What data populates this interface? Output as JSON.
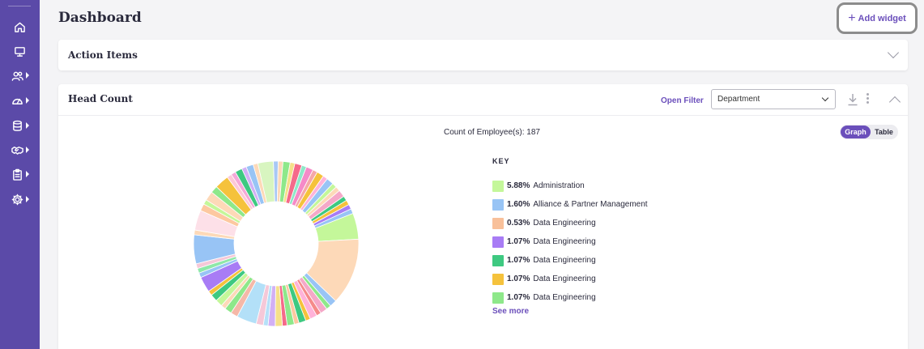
{
  "header": {
    "title": "Dashboard",
    "add_widget_label": "Add widget"
  },
  "sidebar": {
    "items": [
      {
        "name": "home-icon",
        "has_caret": false
      },
      {
        "name": "monitor-icon",
        "has_caret": false
      },
      {
        "name": "users-icon",
        "has_caret": true
      },
      {
        "name": "gauge-icon",
        "has_caret": true
      },
      {
        "name": "database-icon",
        "has_caret": true
      },
      {
        "name": "handshake-icon",
        "has_caret": true
      },
      {
        "name": "clipboard-icon",
        "has_caret": true
      },
      {
        "name": "gear-icon",
        "has_caret": true
      }
    ]
  },
  "action_items": {
    "title": "Action Items"
  },
  "head_count": {
    "title": "Head Count",
    "open_filter": "Open Filter",
    "filter_select": "Department",
    "count_label": "Count of Employee(s): 187",
    "toggle": {
      "graph": "Graph",
      "table": "Table",
      "selected": "Graph"
    },
    "key_title": "KEY",
    "see_more": "See more",
    "legend": [
      {
        "pct": "5.88%",
        "label": "Administration",
        "color": "#c4f79a"
      },
      {
        "pct": "1.60%",
        "label": "Alliance & Partner Management",
        "color": "#98c4f5"
      },
      {
        "pct": "0.53%",
        "label": "Data Engineering",
        "color": "#f8c09a"
      },
      {
        "pct": "1.07%",
        "label": "Data Engineering",
        "color": "#a87cf5"
      },
      {
        "pct": "1.07%",
        "label": "Data Engineering",
        "color": "#3ec981"
      },
      {
        "pct": "1.07%",
        "label": "Data Engineering",
        "color": "#f5c23c"
      },
      {
        "pct": "1.07%",
        "label": "Data Engineering",
        "color": "#8ee88a"
      }
    ]
  },
  "chart_data": {
    "type": "pie",
    "title": "Count of Employee(s): 187",
    "slices": [
      {
        "value": 5.88,
        "color": "#c4f79a"
      },
      {
        "value": 15.0,
        "color": "#fdd9b8"
      },
      {
        "value": 1.6,
        "color": "#98c4f5"
      },
      {
        "value": 1.07,
        "color": "#8ee88a"
      },
      {
        "value": 1.6,
        "color": "#f5a8c8"
      },
      {
        "value": 1.07,
        "color": "#f58a8a"
      },
      {
        "value": 1.6,
        "color": "#ffb3d9"
      },
      {
        "value": 1.07,
        "color": "#f5c23c"
      },
      {
        "value": 1.6,
        "color": "#3ec981"
      },
      {
        "value": 1.07,
        "color": "#fdc8a0"
      },
      {
        "value": 1.6,
        "color": "#8ee88a"
      },
      {
        "value": 1.07,
        "color": "#f56a8a"
      },
      {
        "value": 1.6,
        "color": "#f5e08a"
      },
      {
        "value": 1.6,
        "color": "#d2b0f5"
      },
      {
        "value": 1.07,
        "color": "#b6e0f8"
      },
      {
        "value": 1.6,
        "color": "#f5c8d8"
      },
      {
        "value": 4.5,
        "color": "#b3e0f8"
      },
      {
        "value": 1.6,
        "color": "#f5b8a8"
      },
      {
        "value": 1.6,
        "color": "#8ee88a"
      },
      {
        "value": 1.07,
        "color": "#fdd9b8"
      },
      {
        "value": 1.6,
        "color": "#c4f79a"
      },
      {
        "value": 1.6,
        "color": "#3ec981"
      },
      {
        "value": 1.07,
        "color": "#f5c23c"
      },
      {
        "value": 3.5,
        "color": "#a87cf5"
      },
      {
        "value": 1.07,
        "color": "#98c4f5"
      },
      {
        "value": 1.07,
        "color": "#8ee8a8"
      },
      {
        "value": 1.07,
        "color": "#f5c8d8"
      },
      {
        "value": 6.5,
        "color": "#98c4f5"
      },
      {
        "value": 1.07,
        "color": "#fdd9b8"
      },
      {
        "value": 4.5,
        "color": "#fde0e8"
      },
      {
        "value": 1.6,
        "color": "#fdc8a0"
      },
      {
        "value": 1.07,
        "color": "#c4f79a"
      },
      {
        "value": 2.1,
        "color": "#fdd9b8"
      },
      {
        "value": 1.6,
        "color": "#8ee88a"
      },
      {
        "value": 3.2,
        "color": "#f5c23c"
      },
      {
        "value": 1.07,
        "color": "#fdc8d8"
      },
      {
        "value": 1.07,
        "color": "#f5a8d8"
      },
      {
        "value": 1.6,
        "color": "#3ec981"
      },
      {
        "value": 1.07,
        "color": "#d2b0f5"
      },
      {
        "value": 1.6,
        "color": "#98c4f5"
      },
      {
        "value": 1.07,
        "color": "#fdd9b8"
      },
      {
        "value": 3.5,
        "color": "#d8f5c0"
      },
      {
        "value": 1.07,
        "color": "#a8c8f5"
      },
      {
        "value": 1.07,
        "color": "#fdd9b8"
      },
      {
        "value": 1.6,
        "color": "#8ee88a"
      },
      {
        "value": 1.07,
        "color": "#f5e08a"
      },
      {
        "value": 1.6,
        "color": "#f56a8a"
      },
      {
        "value": 1.07,
        "color": "#8ee8c8"
      },
      {
        "value": 1.6,
        "color": "#f58ac8"
      },
      {
        "value": 1.07,
        "color": "#f5a8a8"
      },
      {
        "value": 1.6,
        "color": "#f5c23c"
      },
      {
        "value": 1.07,
        "color": "#ffb3d9"
      },
      {
        "value": 1.6,
        "color": "#98c4f5"
      },
      {
        "value": 1.07,
        "color": "#c4f79a"
      },
      {
        "value": 1.07,
        "color": "#fdd9b8"
      },
      {
        "value": 1.6,
        "color": "#f5a8c8"
      },
      {
        "value": 1.07,
        "color": "#3ec981"
      },
      {
        "value": 1.07,
        "color": "#f5c23c"
      },
      {
        "value": 1.07,
        "color": "#a87cf5"
      },
      {
        "value": 1.07,
        "color": "#98c4f5"
      }
    ]
  }
}
